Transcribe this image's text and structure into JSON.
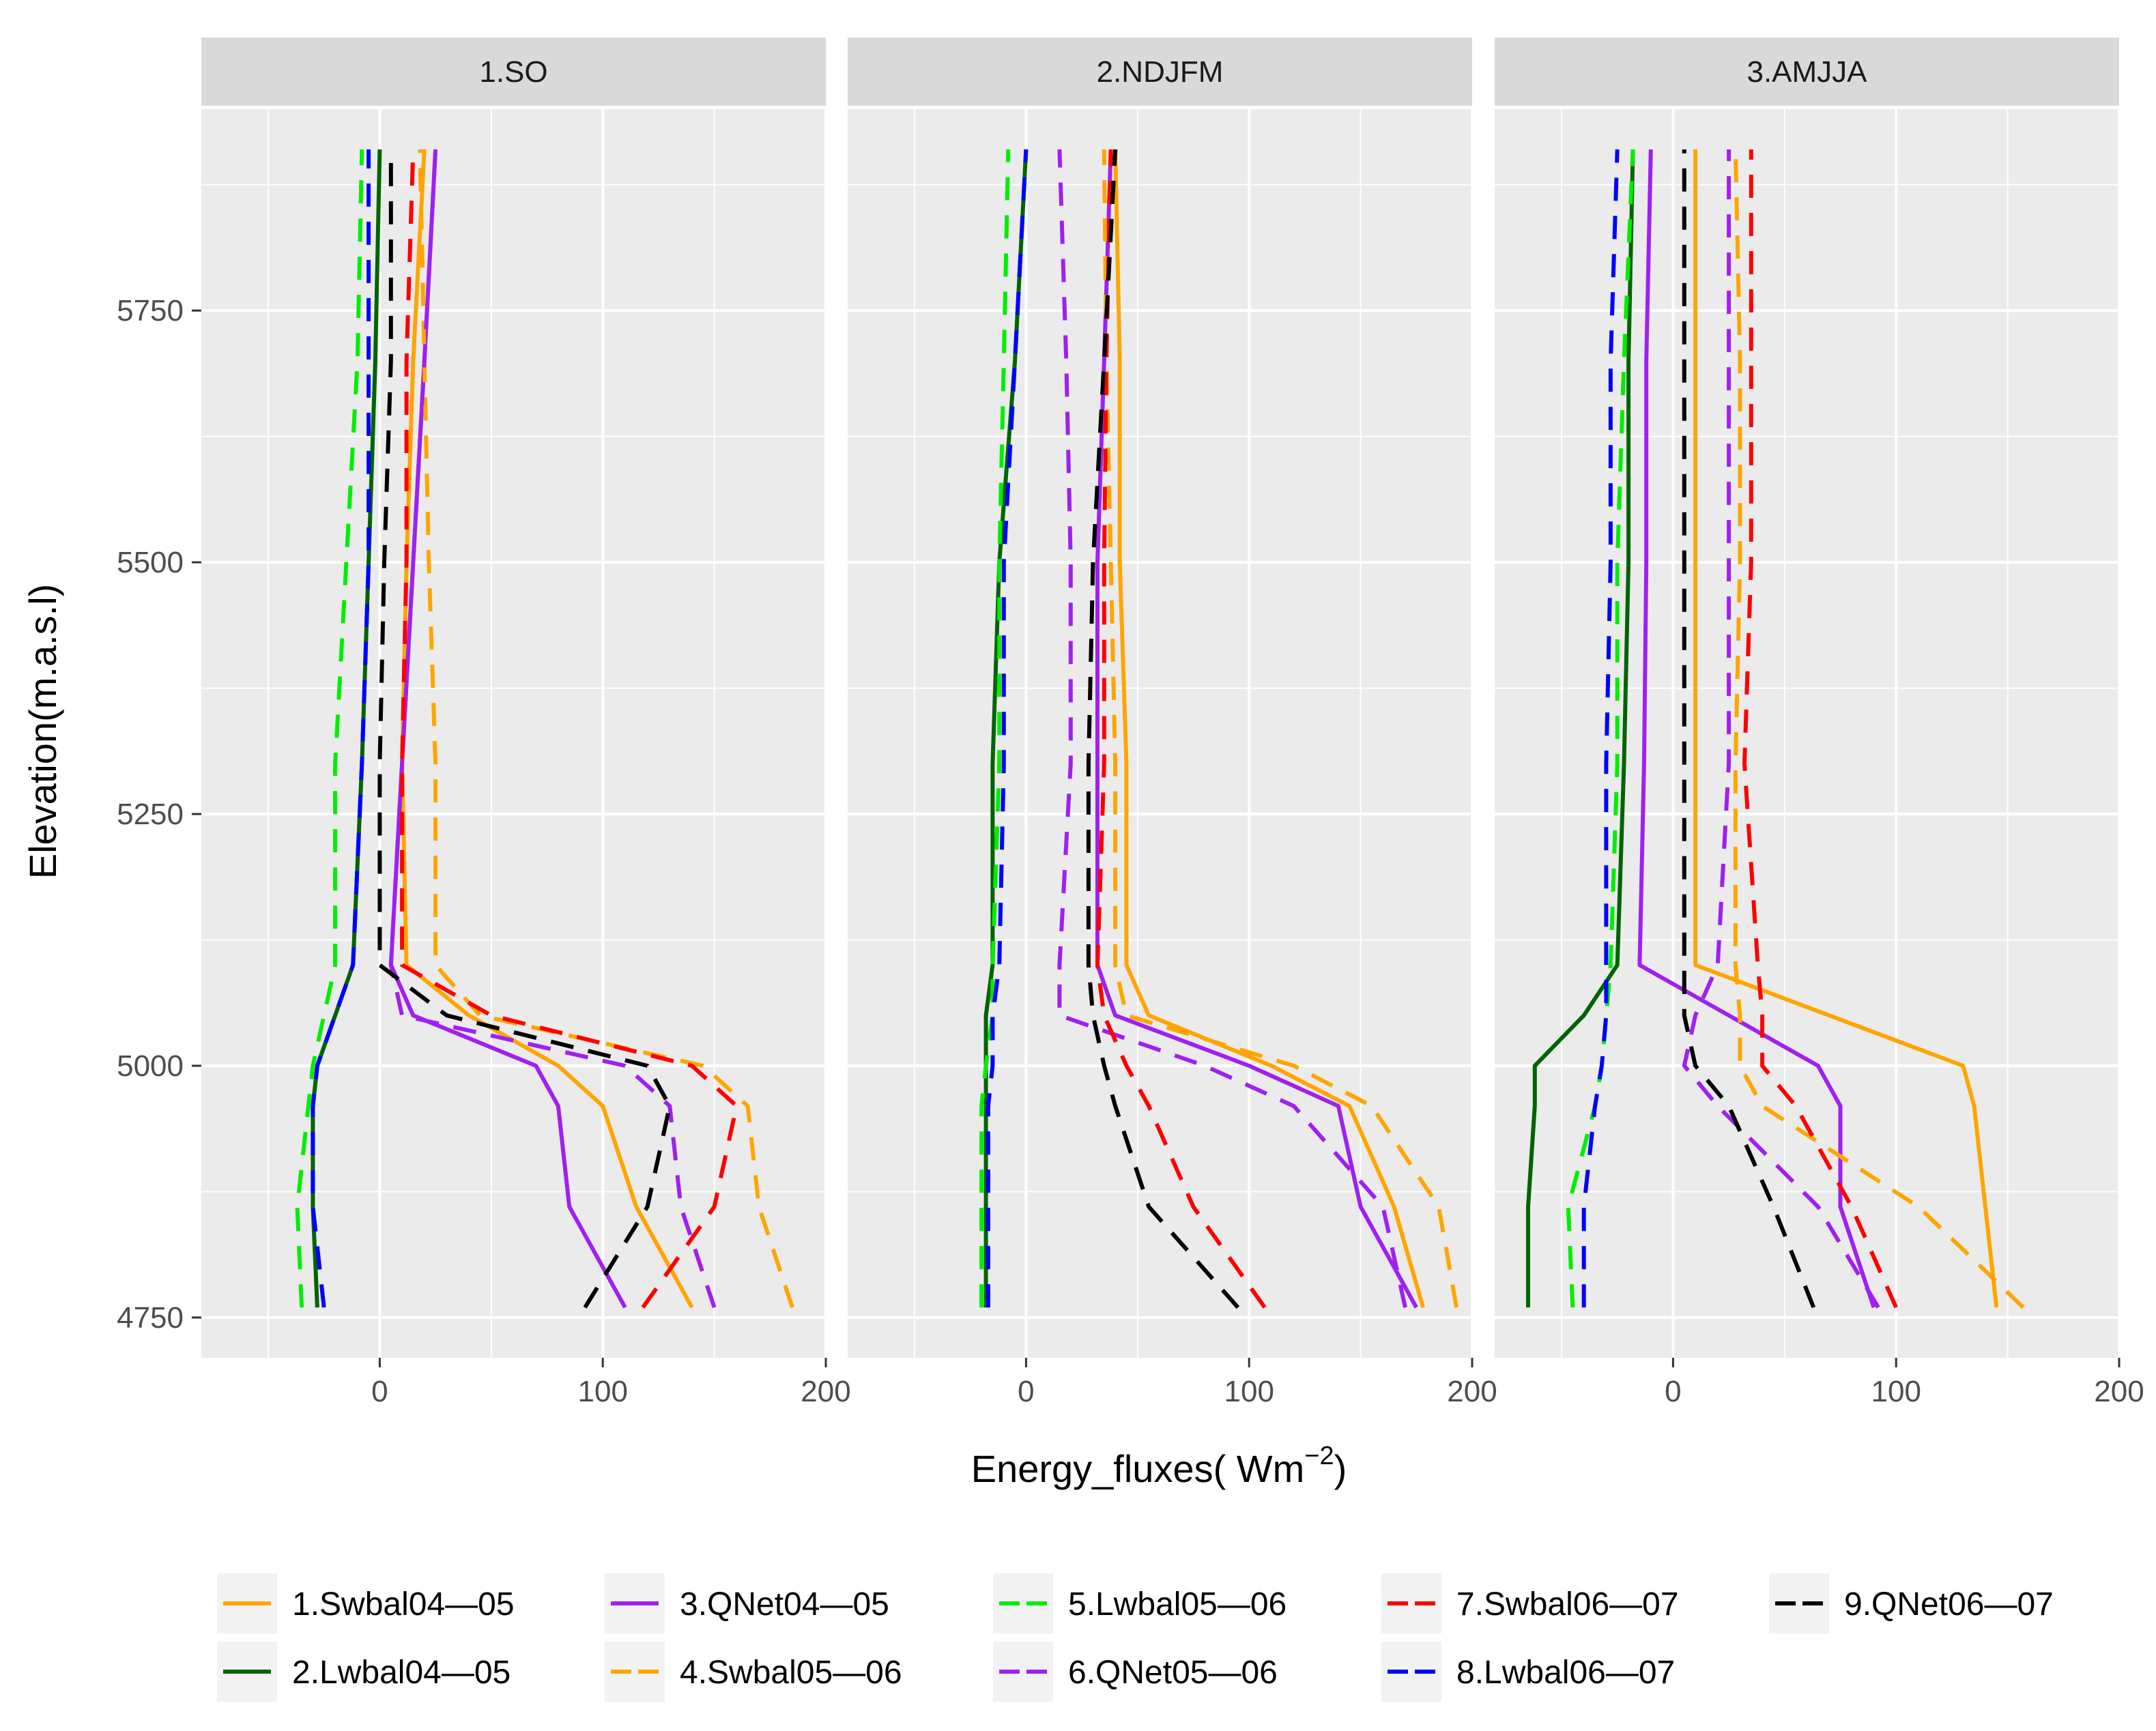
{
  "chart_data": {
    "type": "line",
    "xlabel": "Energy_fluxes( Wm",
    "xlabel_sup": "−2",
    "xlabel_close": ")",
    "ylabel": "Elevation(m.a.s.l)",
    "xlim": [
      -80,
      200
    ],
    "ylim": [
      4710,
      5950
    ],
    "x_ticks": [
      0,
      100,
      200
    ],
    "y_ticks": [
      4750,
      5000,
      5250,
      5500,
      5750
    ],
    "grid": true,
    "legend_position": "bottom",
    "elevations": [
      4760,
      4860,
      4960,
      5000,
      5050,
      5100,
      5300,
      5500,
      5700,
      5910
    ],
    "legend": [
      {
        "label": "1.Swbal04—05",
        "color": "#FFA500",
        "dash": false
      },
      {
        "label": "2.Lwbal04—05",
        "color": "#006400",
        "dash": false
      },
      {
        "label": "3.QNet04—05",
        "color": "#A020F0",
        "dash": false
      },
      {
        "label": "4.Swbal05—06",
        "color": "#FFA500",
        "dash": true
      },
      {
        "label": "5.Lwbal05—06",
        "color": "#00EE00",
        "dash": true
      },
      {
        "label": "6.QNet05—06",
        "color": "#A020F0",
        "dash": true
      },
      {
        "label": "7.Swbal06—07",
        "color": "#FF0000",
        "dash": true
      },
      {
        "label": "8.Lwbal06—07",
        "color": "#0000FF",
        "dash": true
      },
      {
        "label": "9.QNet06—07",
        "color": "#000000",
        "dash": true
      }
    ],
    "panels": [
      {
        "title": "1.SO",
        "series": [
          {
            "legend_index": 0,
            "values": [
              140,
              115,
              100,
              80,
              40,
              12,
              10,
              12,
              15,
              20
            ]
          },
          {
            "legend_index": 1,
            "values": [
              -28,
              -30,
              -30,
              -28,
              -20,
              -12,
              -8,
              -5,
              -2,
              0
            ]
          },
          {
            "legend_index": 2,
            "values": [
              110,
              85,
              80,
              70,
              15,
              5,
              10,
              15,
              20,
              25
            ]
          },
          {
            "legend_index": 3,
            "values": [
              185,
              170,
              165,
              145,
              45,
              25,
              25,
              22,
              20,
              18
            ]
          },
          {
            "legend_index": 4,
            "values": [
              -35,
              -37,
              -32,
              -30,
              -25,
              -20,
              -20,
              -15,
              -10,
              -8
            ]
          },
          {
            "legend_index": 5,
            "values": [
              150,
              135,
              130,
              110,
              10,
              5,
              10,
              15,
              20,
              25
            ]
          },
          {
            "legend_index": 6,
            "values": [
              118,
              150,
              160,
              140,
              50,
              10,
              10,
              12,
              12,
              15
            ]
          },
          {
            "legend_index": 7,
            "values": [
              -25,
              -30,
              -30,
              -28,
              -20,
              -12,
              -8,
              -5,
              -5,
              -5
            ]
          },
          {
            "legend_index": 8,
            "values": [
              92,
              120,
              130,
              120,
              30,
              0,
              0,
              2,
              5,
              5
            ]
          }
        ]
      },
      {
        "title": "2.NDJFM",
        "series": [
          {
            "legend_index": 0,
            "values": [
              178,
              165,
              145,
              110,
              55,
              45,
              45,
              42,
              42,
              40
            ]
          },
          {
            "legend_index": 1,
            "values": [
              -18,
              -18,
              -18,
              -18,
              -18,
              -15,
              -15,
              -12,
              -5,
              0
            ]
          },
          {
            "legend_index": 2,
            "values": [
              175,
              150,
              140,
              100,
              40,
              32,
              32,
              32,
              35,
              38
            ]
          },
          {
            "legend_index": 3,
            "values": [
              193,
              185,
              155,
              120,
              45,
              40,
              40,
              38,
              36,
              35
            ]
          },
          {
            "legend_index": 4,
            "values": [
              -20,
              -20,
              -20,
              -18,
              -15,
              -15,
              -12,
              -12,
              -10,
              -8
            ]
          },
          {
            "legend_index": 5,
            "values": [
              170,
              160,
              120,
              80,
              15,
              15,
              20,
              20,
              18,
              15
            ]
          },
          {
            "legend_index": 6,
            "values": [
              107,
              75,
              55,
              45,
              35,
              32,
              35,
              35,
              36,
              38
            ]
          },
          {
            "legend_index": 7,
            "values": [
              -17,
              -17,
              -17,
              -15,
              -15,
              -12,
              -10,
              -10,
              -5,
              0
            ]
          },
          {
            "legend_index": 8,
            "values": [
              95,
              55,
              40,
              35,
              30,
              28,
              28,
              30,
              35,
              40
            ]
          }
        ]
      },
      {
        "title": "3.AMJJA",
        "series": [
          {
            "legend_index": 0,
            "values": [
              145,
              140,
              135,
              130,
              70,
              10,
              10,
              10,
              10,
              10
            ]
          },
          {
            "legend_index": 1,
            "values": [
              -65,
              -65,
              -62,
              -62,
              -40,
              -25,
              -22,
              -20,
              -20,
              -18
            ]
          },
          {
            "legend_index": 2,
            "values": [
              90,
              75,
              75,
              65,
              25,
              -15,
              -13,
              -12,
              -12,
              -10
            ]
          },
          {
            "legend_index": 3,
            "values": [
              157,
              110,
              40,
              30,
              30,
              28,
              28,
              30,
              30,
              28
            ]
          },
          {
            "legend_index": 4,
            "values": [
              -45,
              -47,
              -35,
              -32,
              -30,
              -28,
              -25,
              -25,
              -22,
              -18
            ]
          },
          {
            "legend_index": 5,
            "values": [
              92,
              65,
              20,
              5,
              10,
              20,
              25,
              25,
              25,
              25
            ]
          },
          {
            "legend_index": 6,
            "values": [
              100,
              80,
              55,
              40,
              40,
              38,
              32,
              35,
              35,
              35
            ]
          },
          {
            "legend_index": 7,
            "values": [
              -40,
              -40,
              -35,
              -32,
              -30,
              -30,
              -30,
              -28,
              -28,
              -25
            ]
          },
          {
            "legend_index": 8,
            "values": [
              63,
              45,
              25,
              10,
              5,
              5,
              5,
              5,
              5,
              5
            ]
          }
        ]
      }
    ]
  }
}
